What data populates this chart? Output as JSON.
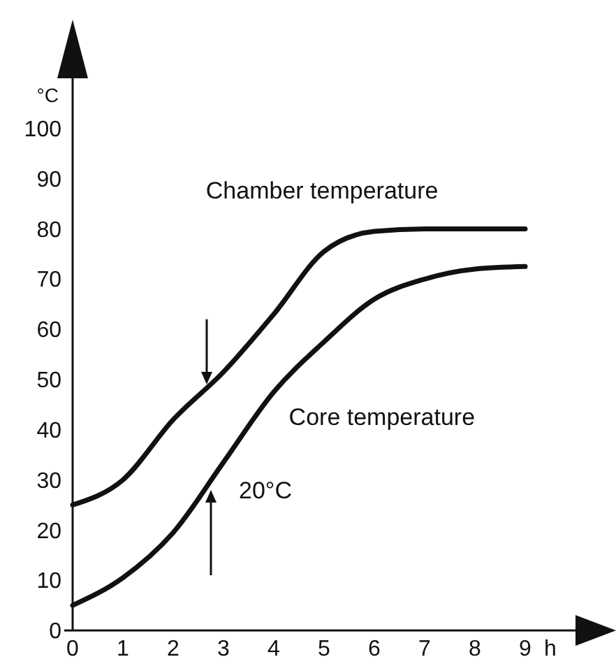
{
  "chart_data": {
    "type": "line",
    "ylabel": "°C",
    "xlabel": "h",
    "x": [
      0,
      1,
      2,
      3,
      4,
      5,
      6,
      7,
      8,
      9
    ],
    "series": [
      {
        "name": "Chamber temperature",
        "color": "#111111",
        "values": [
          25,
          30,
          42,
          51.5,
          63,
          75.5,
          79.5,
          80,
          80,
          80
        ]
      },
      {
        "name": "Core temperature",
        "color": "#111111",
        "values": [
          5,
          10.5,
          19.5,
          33.5,
          47.5,
          57.5,
          66,
          70,
          72,
          72.5
        ]
      }
    ],
    "xlim": [
      0,
      10
    ],
    "ylim": [
      0,
      110
    ],
    "xticks": [
      0,
      1,
      2,
      3,
      4,
      5,
      6,
      7,
      8,
      9
    ],
    "yticks": [
      0,
      10,
      20,
      30,
      40,
      50,
      60,
      70,
      80,
      90,
      100
    ],
    "annotations": [
      {
        "text": "20°C",
        "x": 2.75,
        "y": 28
      }
    ],
    "grid": false,
    "legend": false,
    "marker": "none",
    "line_style": "solid"
  }
}
